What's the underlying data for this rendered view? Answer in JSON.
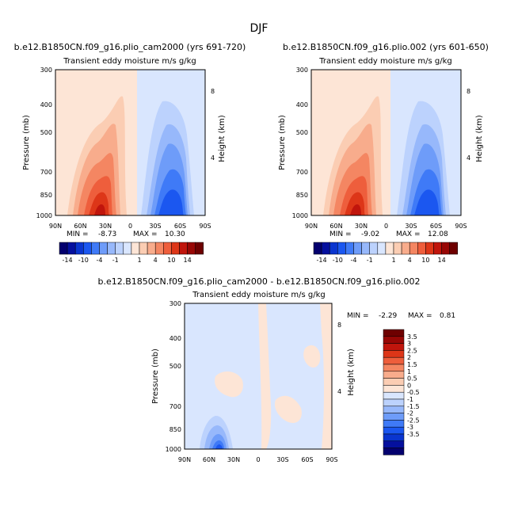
{
  "figure_title": "DJF",
  "colors": {
    "neg": [
      "#04006e",
      "#05109e",
      "#0a35cf",
      "#1b57f0",
      "#3f7af7",
      "#6e9cf9",
      "#97b8fb",
      "#bcd2fd",
      "#d9e6fe"
    ],
    "pos": [
      "#fde5d6",
      "#fbcdb3",
      "#f8ac8c",
      "#f48662",
      "#ee5e3c",
      "#dd3618",
      "#c0150c",
      "#980705",
      "#6e0000"
    ]
  },
  "chart_data": [
    {
      "type": "contour",
      "title": "b.e12.B1850CN.f09_g16.plio_cam2000 (yrs 691-720)",
      "subtitle": "Transient eddy moisture m/s g/kg",
      "xlabel": "",
      "ylabel": "Pressure (mb)",
      "ylabel_right": "Height (km)",
      "x_ticks": [
        "90N",
        "60N",
        "30N",
        "0",
        "30S",
        "60S",
        "90S"
      ],
      "y_ticks": [
        "300",
        "400",
        "500",
        "700",
        "850",
        "1000"
      ],
      "y_right_ticks": [
        "8",
        "4"
      ],
      "min_label": "MIN =",
      "min_value": "-8.73",
      "max_label": "MAX =",
      "max_value": "10.30",
      "colorbar_labels": [
        "-14",
        "-10",
        "-4",
        "-1",
        "1",
        "4",
        "10",
        "14"
      ]
    },
    {
      "type": "contour",
      "title": "b.e12.B1850CN.f09_g16.plio.002 (yrs 601-650)",
      "subtitle": "Transient eddy moisture m/s g/kg",
      "xlabel": "",
      "ylabel": "Pressure (mb)",
      "ylabel_right": "Height (km)",
      "x_ticks": [
        "90N",
        "60N",
        "30N",
        "0",
        "30S",
        "60S",
        "90S"
      ],
      "y_ticks": [
        "300",
        "400",
        "500",
        "700",
        "850",
        "1000"
      ],
      "y_right_ticks": [
        "8",
        "4"
      ],
      "min_label": "MIN =",
      "min_value": "-9.02",
      "max_label": "MAX =",
      "max_value": "12.08",
      "colorbar_labels": [
        "-14",
        "-10",
        "-4",
        "-1",
        "1",
        "4",
        "10",
        "14"
      ]
    },
    {
      "type": "contour",
      "title": "b.e12.B1850CN.f09_g16.plio_cam2000 - b.e12.B1850CN.f09_g16.plio.002",
      "subtitle": "Transient eddy moisture m/s g/kg",
      "xlabel": "",
      "ylabel": "Pressure (mb)",
      "ylabel_right": "Height (km)",
      "x_ticks": [
        "90N",
        "60N",
        "30N",
        "0",
        "30S",
        "60S",
        "90S"
      ],
      "y_ticks": [
        "300",
        "400",
        "500",
        "700",
        "850",
        "1000"
      ],
      "y_right_ticks": [
        "8",
        "4"
      ],
      "min_label": "MIN =",
      "min_value": "-2.29",
      "max_label": "MAX =",
      "max_value": "0.81",
      "colorbar_labels": [
        "3.5",
        "3",
        "2.5",
        "2",
        "1.5",
        "1",
        "0.5",
        "0",
        "-0.5",
        "-1",
        "-1.5",
        "-2",
        "-2.5",
        "-3",
        "-3.5"
      ]
    }
  ]
}
